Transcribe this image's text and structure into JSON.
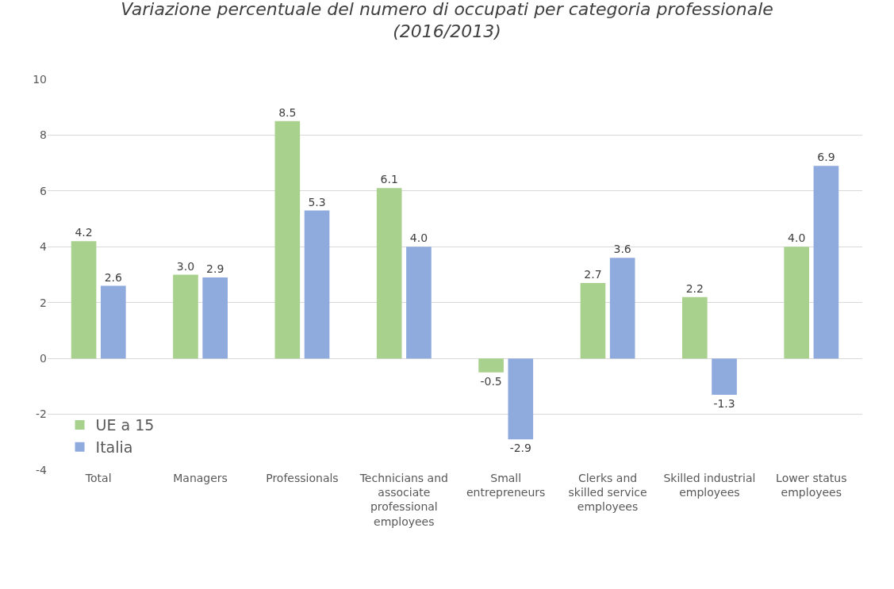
{
  "chart_data": {
    "type": "bar",
    "title": "Variazione percentuale del numero di occupati per categoria professionale\n(2016/2013)",
    "categories": [
      "Total",
      "Managers",
      "Professionals",
      "Technicians and\nassociate\nprofessional\nemployees",
      "Small\nentrepreneurs",
      "Clerks and\nskilled service\nemployees",
      "Skilled industrial\nemployees",
      "Lower status\nemployees"
    ],
    "series": [
      {
        "name": "UE a 15",
        "color": "#a9d18e",
        "values": [
          4.2,
          3.0,
          8.5,
          6.1,
          -0.5,
          2.7,
          2.2,
          4.0
        ],
        "value_labels": [
          "4.2",
          "3.0",
          "8.5",
          "6.1",
          "-0.5",
          "2.7",
          "2.2",
          "4.0"
        ]
      },
      {
        "name": "Italia",
        "color": "#8faadc",
        "values": [
          2.6,
          2.9,
          5.3,
          4.0,
          -2.9,
          3.6,
          -1.3,
          6.9
        ],
        "value_labels": [
          "2.6",
          "2.9",
          "5.3",
          "4.0",
          "-2.9",
          "3.6",
          "-1.3",
          "6.9"
        ]
      }
    ],
    "ylim": [
      -4,
      10
    ],
    "yticks": [
      -4,
      -2,
      0,
      2,
      4,
      6,
      8,
      10
    ],
    "grid": "y",
    "legend": "bottom left"
  }
}
